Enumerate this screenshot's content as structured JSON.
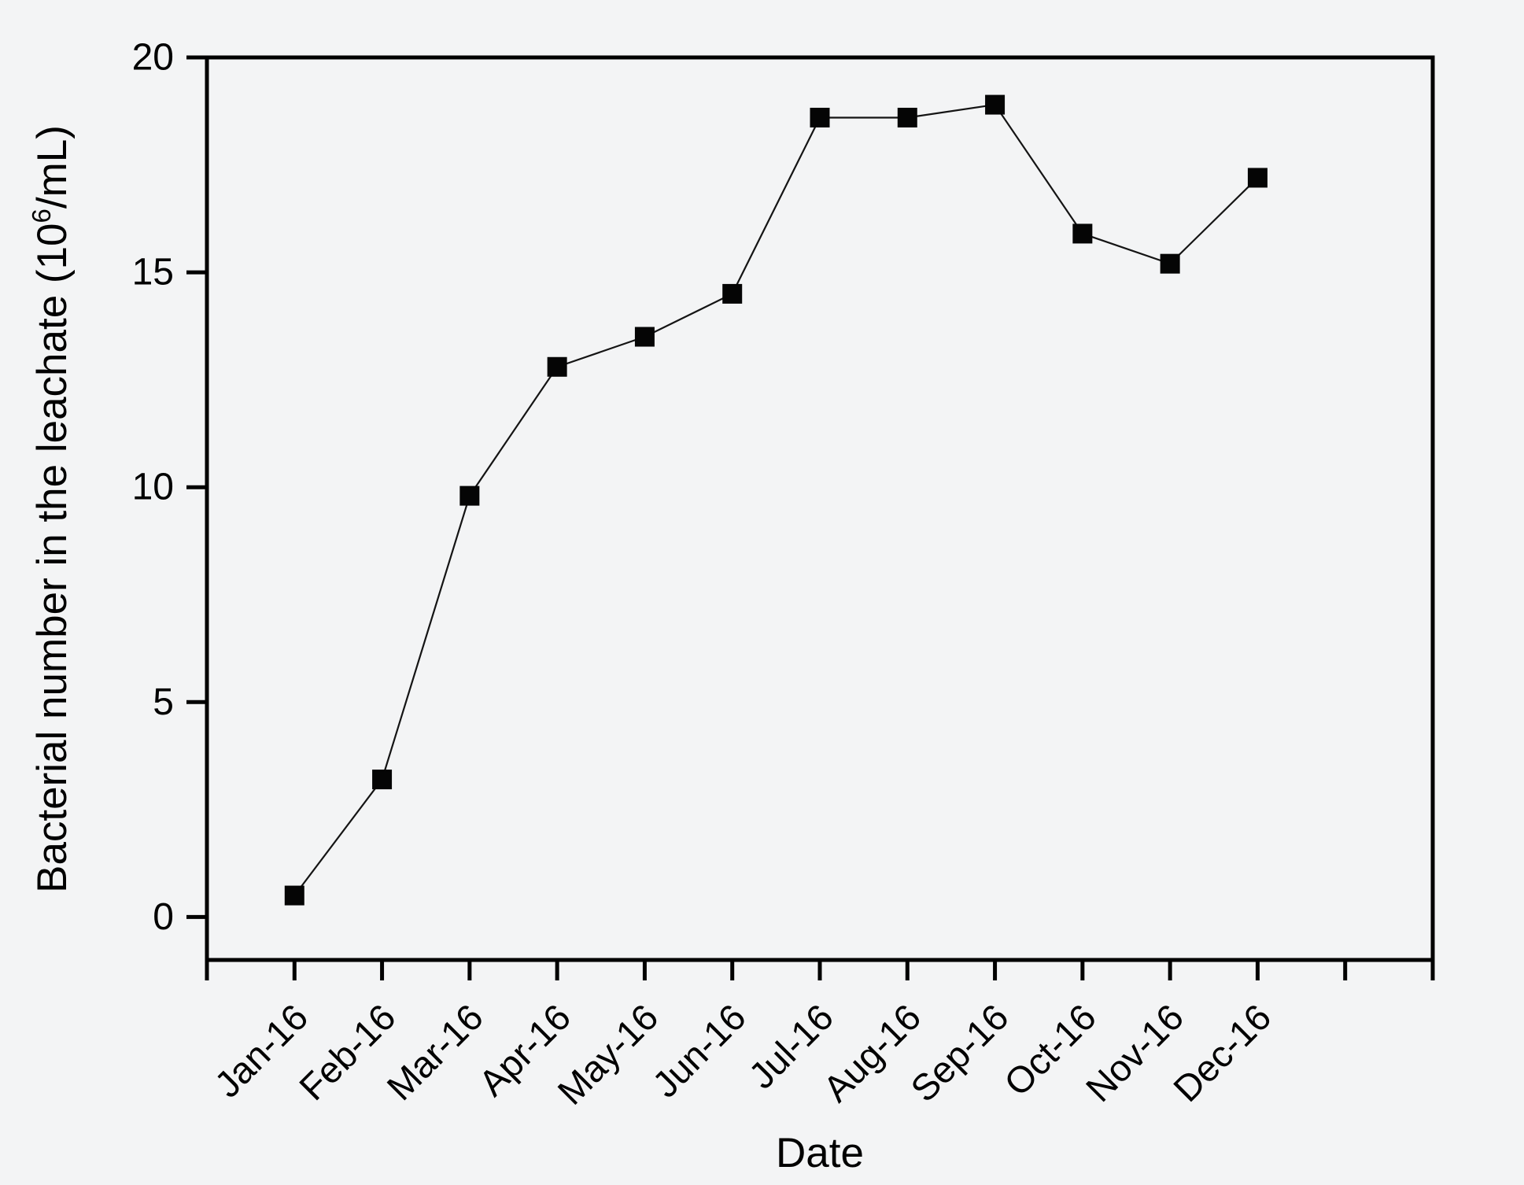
{
  "figure": {
    "background_color": "#f3f4f5",
    "ink_color": "#000000"
  },
  "chart_data": {
    "type": "line",
    "title": "",
    "xlabel": "Date",
    "ylabel": "Bacterial number in the leachate (10⁶/mL)",
    "ylabel_parts": {
      "before_sup": "Bacterial number in the leachate (10",
      "sup": "6",
      "after_sup": "/mL)"
    },
    "categories": [
      "Jan-16",
      "Feb-16",
      "Mar-16",
      "Apr-16",
      "May-16",
      "Jun-16",
      "Jul-16",
      "Aug-16",
      "Sep-16",
      "Oct-16",
      "Nov-16",
      "Dec-16"
    ],
    "series": [
      {
        "name": "Bacterial number",
        "values": [
          0.5,
          3.2,
          9.8,
          12.8,
          13.5,
          14.5,
          18.6,
          18.6,
          18.9,
          15.9,
          15.2,
          17.2
        ]
      }
    ],
    "yticks": [
      0,
      5,
      10,
      15,
      20
    ],
    "ylim": [
      -1,
      20
    ],
    "grid": false,
    "legend": "none",
    "marker": "filled-square",
    "line_color": "#141414",
    "marker_color": "#050505",
    "axis_color": "#000000"
  }
}
